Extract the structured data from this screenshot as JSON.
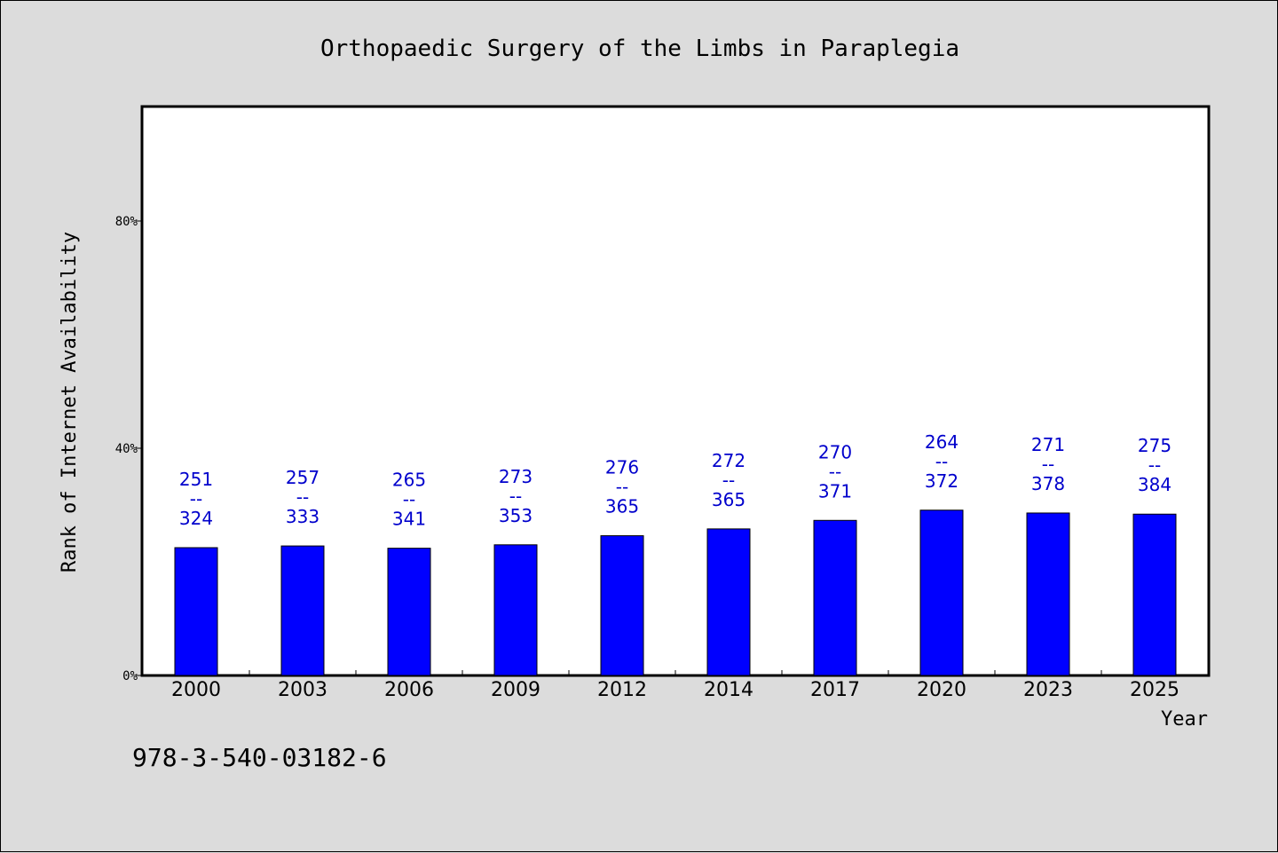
{
  "chart_data": {
    "type": "bar",
    "title": "Orthopaedic Surgery of the Limbs in Paraplegia",
    "xlabel": "Year",
    "ylabel": "Rank of Internet Availability",
    "ylim": [
      0,
      100
    ],
    "yticks": [
      {
        "value": 0,
        "label": "0%"
      },
      {
        "value": 40,
        "label": "40%"
      },
      {
        "value": 80,
        "label": "80%"
      }
    ],
    "categories": [
      "2000",
      "2003",
      "2006",
      "2009",
      "2012",
      "2014",
      "2017",
      "2020",
      "2023",
      "2025"
    ],
    "values": [
      22.5,
      22.8,
      22.4,
      23.0,
      24.6,
      25.8,
      27.3,
      29.1,
      28.6,
      28.4
    ],
    "data_labels": [
      [
        "251",
        "--",
        "324"
      ],
      [
        "257",
        "--",
        "333"
      ],
      [
        "265",
        "--",
        "341"
      ],
      [
        "273",
        "--",
        "353"
      ],
      [
        "276",
        "--",
        "365"
      ],
      [
        "272",
        "--",
        "365"
      ],
      [
        "270",
        "--",
        "371"
      ],
      [
        "264",
        "--",
        "372"
      ],
      [
        "271",
        "--",
        "378"
      ],
      [
        "275",
        "--",
        "384"
      ]
    ],
    "bar_color": "#0000ff",
    "label_color": "#0000cc",
    "grid": false
  },
  "footer": {
    "isbn": "978-3-540-03182-6"
  },
  "colors": {
    "background": "#dcdcdc",
    "plot_background": "#ffffff"
  }
}
